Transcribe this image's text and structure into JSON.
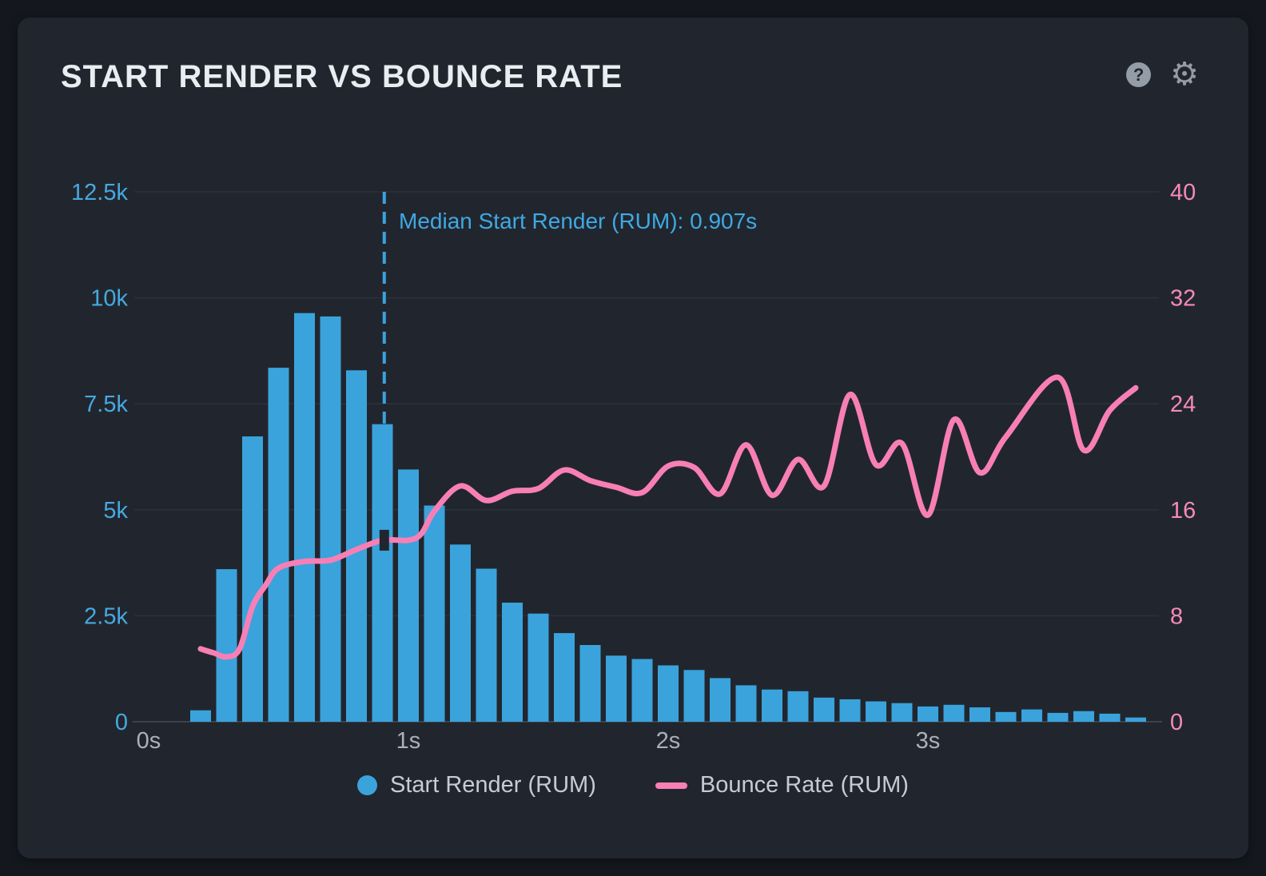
{
  "panel": {
    "title": "START RENDER VS BOUNCE RATE",
    "help_glyph": "?",
    "settings_glyph": "⚙"
  },
  "legend": [
    {
      "label": "Start Render (RUM)",
      "color": "#3aa3dc",
      "marker": "circle"
    },
    {
      "label": "Bounce Rate (RUM)",
      "color": "#f87fb5",
      "marker": "line"
    }
  ],
  "colors": {
    "page_bg": "#14181e",
    "card_bg": "#21262e",
    "bar_blue": "#3aa3dc",
    "left_tick_blue": "#46a9e0",
    "line_pink": "#f87fb5",
    "right_tick_pink": "#f689bb",
    "x_tick_gray": "#a9b1bb",
    "gridline": "#2b323b",
    "axis_line": "#3b424c",
    "annotation_blue": "#3fa9e3",
    "icon_gray": "#939ca7",
    "title_white": "#e9ecf0"
  },
  "chart_data": {
    "type": "bar+line",
    "title": "START RENDER VS BOUNCE RATE",
    "x_axis": {
      "unit": "seconds",
      "range": [
        -0.05,
        3.88
      ],
      "ticks": [
        {
          "v": 0,
          "label": "0s"
        },
        {
          "v": 1,
          "label": "1s"
        },
        {
          "v": 2,
          "label": "2s"
        },
        {
          "v": 3,
          "label": "3s"
        }
      ]
    },
    "left_axis": {
      "series": "Start Render (RUM)",
      "ylim": [
        0,
        12500
      ],
      "ticks": [
        {
          "v": 0,
          "label": "0"
        },
        {
          "v": 2500,
          "label": "2.5k"
        },
        {
          "v": 5000,
          "label": "5k"
        },
        {
          "v": 7500,
          "label": "7.5k"
        },
        {
          "v": 10000,
          "label": "10k"
        },
        {
          "v": 12500,
          "label": "12.5k"
        }
      ]
    },
    "right_axis": {
      "series": "Bounce Rate (RUM)",
      "ylim": [
        0,
        40
      ],
      "ticks": [
        {
          "v": 0,
          "label": "0"
        },
        {
          "v": 8,
          "label": "8"
        },
        {
          "v": 16,
          "label": "16"
        },
        {
          "v": 24,
          "label": "24"
        },
        {
          "v": 32,
          "label": "32"
        },
        {
          "v": 40,
          "label": "40"
        }
      ]
    },
    "histogram": {
      "name": "Start Render (RUM)",
      "bin_start": 0.2,
      "bin_step": 0.1,
      "counts": [
        270,
        3600,
        6730,
        8350,
        9640,
        9560,
        8290,
        7020,
        5950,
        5100,
        4180,
        3610,
        2810,
        2550,
        2090,
        1810,
        1560,
        1480,
        1330,
        1220,
        1030,
        860,
        760,
        720,
        570,
        530,
        480,
        440,
        360,
        400,
        340,
        230,
        290,
        210,
        250,
        190,
        100
      ]
    },
    "line": {
      "name": "Bounce Rate (RUM)",
      "points": [
        [
          0.2,
          5.5
        ],
        [
          0.25,
          5.2
        ],
        [
          0.3,
          4.9
        ],
        [
          0.35,
          5.5
        ],
        [
          0.4,
          8.7
        ],
        [
          0.45,
          10.3
        ],
        [
          0.5,
          11.6
        ],
        [
          0.6,
          12.1
        ],
        [
          0.7,
          12.2
        ],
        [
          0.8,
          13.0
        ],
        [
          0.9,
          13.7
        ],
        [
          1.0,
          13.7
        ],
        [
          1.05,
          14.2
        ],
        [
          1.1,
          15.9
        ],
        [
          1.2,
          17.8
        ],
        [
          1.3,
          16.7
        ],
        [
          1.4,
          17.4
        ],
        [
          1.5,
          17.6
        ],
        [
          1.6,
          19.0
        ],
        [
          1.7,
          18.2
        ],
        [
          1.8,
          17.7
        ],
        [
          1.9,
          17.3
        ],
        [
          2.0,
          19.3
        ],
        [
          2.1,
          19.2
        ],
        [
          2.2,
          17.2
        ],
        [
          2.3,
          20.9
        ],
        [
          2.4,
          17.1
        ],
        [
          2.5,
          19.8
        ],
        [
          2.6,
          17.8
        ],
        [
          2.7,
          24.7
        ],
        [
          2.8,
          19.4
        ],
        [
          2.9,
          21.0
        ],
        [
          3.0,
          15.6
        ],
        [
          3.1,
          22.8
        ],
        [
          3.2,
          18.8
        ],
        [
          3.3,
          21.5
        ],
        [
          3.5,
          26.0
        ],
        [
          3.6,
          20.5
        ],
        [
          3.7,
          23.5
        ],
        [
          3.8,
          25.2
        ]
      ]
    },
    "median": {
      "t": 0.907,
      "label": "Median Start Render (RUM): 0.907s"
    },
    "grid": "horizontal",
    "legend_position": "bottom"
  }
}
